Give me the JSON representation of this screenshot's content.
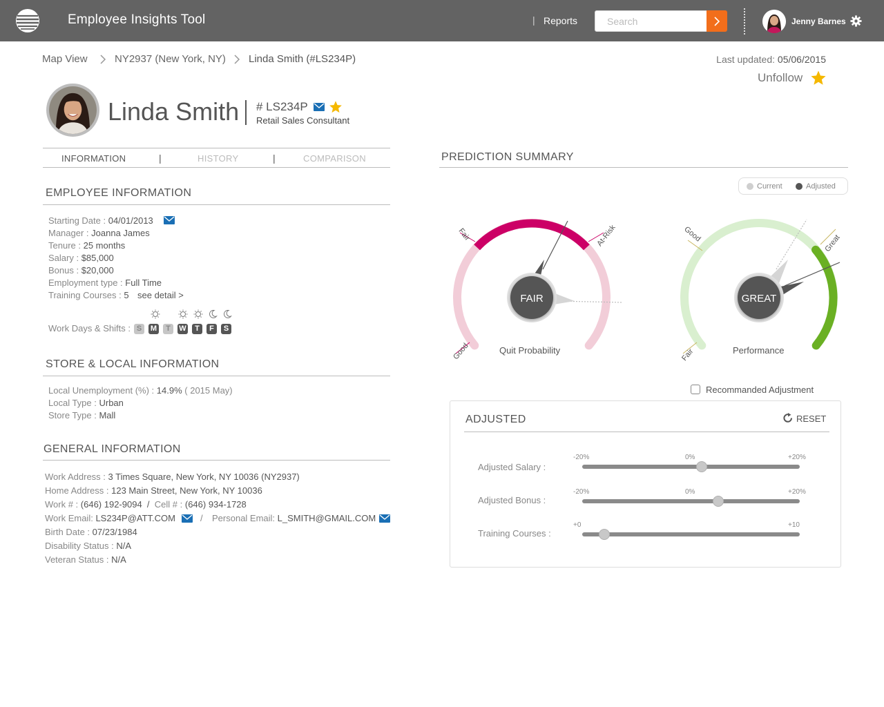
{
  "app": {
    "title": "Employee Insights Tool",
    "nav_reports": "Reports",
    "nav_separator": "|",
    "search_placeholder": "Search",
    "user_name": "Jenny Barnes"
  },
  "breadcrumb": [
    "Map View",
    "NY2937 (New York, NY)",
    "Linda Smith (#LS234P)"
  ],
  "last_updated": {
    "label": "Last updated: ",
    "value": "05/06/2015"
  },
  "follow": {
    "label": "Unfollow"
  },
  "profile": {
    "name": "Linda Smith",
    "separator": "|",
    "id": "# LS234P",
    "role": "Retail Sales Consultant"
  },
  "tabs": [
    "INFORMATION",
    "HISTORY",
    "COMPARISON"
  ],
  "tab_separator": "|",
  "employee_info": {
    "title": "EMPLOYEE INFORMATION",
    "rows": [
      {
        "label": "Starting Date : ",
        "value": "04/01/2013"
      },
      {
        "label": "Manager : ",
        "value": "Joanna James"
      },
      {
        "label": "Tenure : ",
        "value": "25 months"
      },
      {
        "label": "Salary : ",
        "value": "$85,000"
      },
      {
        "label": "Bonus : ",
        "value": "$20,000"
      },
      {
        "label": "Employment type : ",
        "value": "Full Time"
      },
      {
        "label": "Training Courses : ",
        "value": "5"
      }
    ],
    "see_detail": "see detail >",
    "work_days_label": "Work Days & Shifts :",
    "days": [
      {
        "letter": "S",
        "working": false,
        "shift": ""
      },
      {
        "letter": "M",
        "working": true,
        "shift": "sun"
      },
      {
        "letter": "T",
        "working": false,
        "shift": ""
      },
      {
        "letter": "W",
        "working": true,
        "shift": "sun"
      },
      {
        "letter": "T",
        "working": true,
        "shift": "sun"
      },
      {
        "letter": "F",
        "working": true,
        "shift": "moon"
      },
      {
        "letter": "S",
        "working": true,
        "shift": "moon"
      }
    ]
  },
  "store_info": {
    "title": "STORE & LOCAL INFORMATION",
    "rows": [
      {
        "label": "Local Unemployment (%) : ",
        "value": "14.9%",
        "extra": " ( 2015 May)"
      },
      {
        "label": "Local Type : ",
        "value": "Urban",
        "extra": ""
      },
      {
        "label": "Store Type : ",
        "value": "Mall",
        "extra": ""
      }
    ]
  },
  "general_info": {
    "title": "GENERAL INFORMATION",
    "work_address": {
      "label": "Work Address : ",
      "value": "3 Times Square, New York, NY 10036 (NY2937)"
    },
    "home_address": {
      "label": "Home Address : ",
      "value": " 123 Main Street, New York, NY 10036"
    },
    "work_phone": {
      "label": "Work # : ",
      "value": "(646) 192-9094"
    },
    "phone_sep": "/",
    "cell_phone": {
      "label": "Cell # : ",
      "value": "(646) 934-1728"
    },
    "work_email": {
      "label": "Work Email: ",
      "value": "LS234P@ATT.COM"
    },
    "email_sep": "/",
    "personal_email": {
      "label": "Personal Email: ",
      "value": "L_SMITH@GMAIL.COM"
    },
    "birth_date": {
      "label": "Birth Date : ",
      "value": "07/23/1984"
    },
    "disability": {
      "label": "Disability Status : ",
      "value": "N/A"
    },
    "veteran": {
      "label": "Veteran Status : ",
      "value": "N/A"
    }
  },
  "prediction": {
    "title": "PREDICTION SUMMARY",
    "legend": {
      "current": "Current",
      "adjusted": "Adjusted",
      "current_color": "#cfcfcf",
      "adjusted_color": "#555555"
    },
    "quit": {
      "label": "Quit Probability",
      "value_label": "FAIR",
      "zones": [
        "Good",
        "Fair",
        "At-Risk"
      ],
      "accent": "#cc0066",
      "muted": "#f2cdd8"
    },
    "performance": {
      "label": "Performance",
      "value_label": "GREAT",
      "zones": [
        "Fair",
        "Good",
        "Great"
      ],
      "accent": "#6ab023",
      "muted": "#d9efcf"
    }
  },
  "recommended_label": "Recommanded Adjustment",
  "adjusted": {
    "title": "ADJUSTED",
    "reset": "RESET",
    "sliders": [
      {
        "label": "Adjusted Salary :",
        "ticks": [
          "-20%",
          "0%",
          "+20%"
        ],
        "min": -20,
        "max": 20,
        "value": 2
      },
      {
        "label": "Adjusted Bonus :",
        "ticks": [
          "-20%",
          "0%",
          "+20%"
        ],
        "min": -20,
        "max": 20,
        "value": 5
      },
      {
        "label": "Training Courses :",
        "ticks": [
          "+0",
          "+10"
        ],
        "min": 0,
        "max": 10,
        "value": 1
      }
    ]
  },
  "colors": {
    "topbar": "#636363",
    "accent_orange": "#f26e1b",
    "mail_blue": "#1a6fb5",
    "star": "#f5b800"
  }
}
